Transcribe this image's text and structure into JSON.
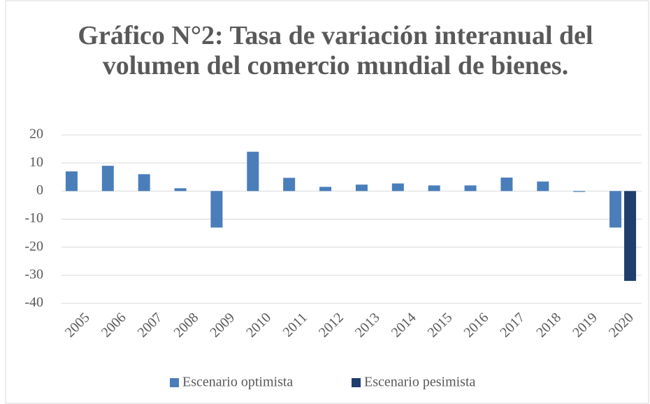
{
  "chart_data": {
    "type": "bar",
    "title": "Gráfico N°2: Tasa de variación interanual del volumen del comercio mundial de bienes.",
    "categories": [
      "2005",
      "2006",
      "2007",
      "2008",
      "2009",
      "2010",
      "2011",
      "2012",
      "2013",
      "2014",
      "2015",
      "2016",
      "2017",
      "2018",
      "2019",
      "2020"
    ],
    "series": [
      {
        "name": "Escenario optimista",
        "color": "#4a7ebb",
        "values": [
          7,
          9,
          6,
          1,
          -13,
          14,
          4.7,
          1.5,
          2.3,
          2.7,
          2,
          2,
          4.8,
          3.4,
          -0.3,
          -13
        ]
      },
      {
        "name": "Escenario pesimista",
        "color": "#1f3d6e",
        "values": [
          null,
          null,
          null,
          null,
          null,
          null,
          null,
          null,
          null,
          null,
          null,
          null,
          null,
          null,
          null,
          -32
        ]
      }
    ],
    "ylim": [
      -40,
      20
    ],
    "yticks": [
      -40,
      -30,
      -20,
      -10,
      0,
      10,
      20
    ],
    "grid": true,
    "legend": "bottom"
  }
}
